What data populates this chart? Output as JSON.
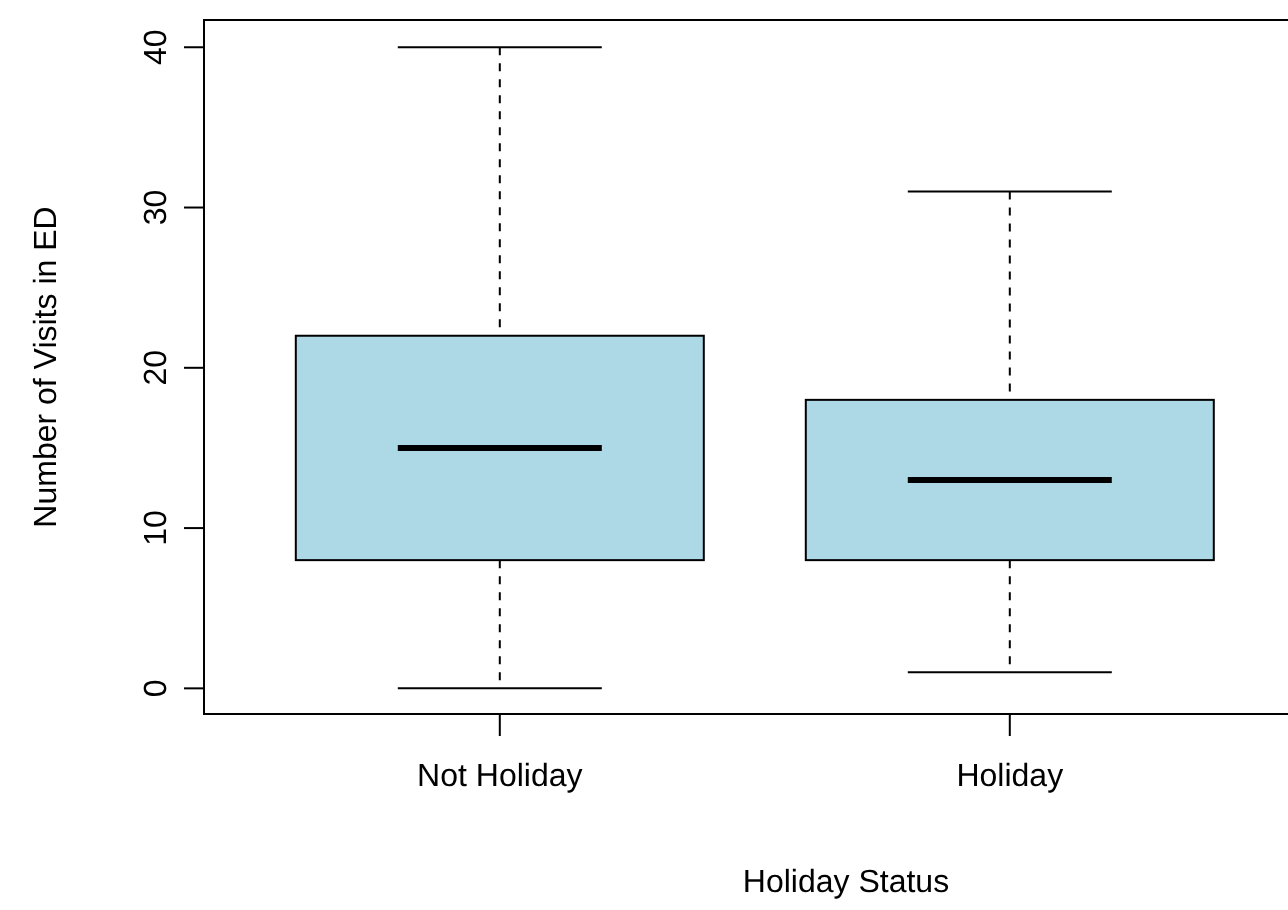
{
  "chart_data": {
    "type": "box",
    "xlabel": "Holiday Status",
    "ylabel": "Number of Visits in ED",
    "categories": [
      "Not Holiday",
      "Holiday"
    ],
    "boxes": [
      {
        "low": 0,
        "q1": 8,
        "median": 15,
        "q3": 22,
        "high": 40
      },
      {
        "low": 1,
        "q1": 8,
        "median": 13,
        "q3": 18,
        "high": 31
      }
    ],
    "color": "#add8e6",
    "ylim": [
      -1.6,
      41.7
    ],
    "yticks": [
      0,
      10,
      20,
      30,
      40
    ],
    "grid": false
  }
}
